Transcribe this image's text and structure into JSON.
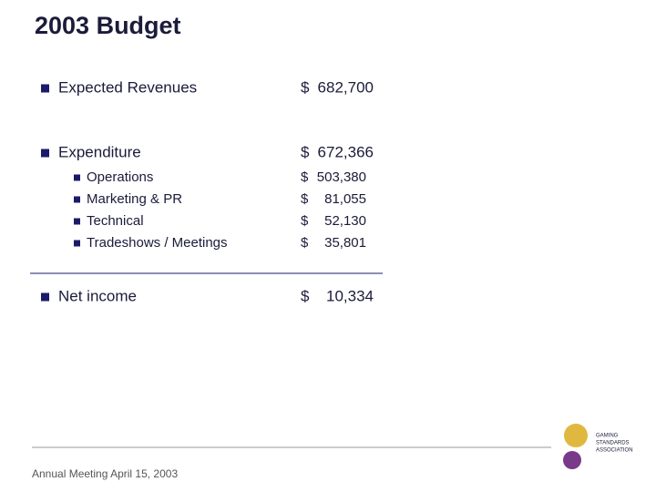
{
  "header": {
    "title": "2003 Budget"
  },
  "items": [
    {
      "label": "Expected Revenues",
      "currency": "$",
      "amount": "682,700"
    },
    {
      "label": "Expenditure",
      "currency": "$",
      "amount": "672,366",
      "subitems": [
        {
          "label": "Operations",
          "currency": "$",
          "amount": "503,380"
        },
        {
          "label": "Marketing & PR",
          "currency": "$",
          "amount": "81,055"
        },
        {
          "label": "Technical",
          "currency": "$",
          "amount": "52,130"
        },
        {
          "label": "Tradeshows / Meetings",
          "currency": "$",
          "amount": "35,801"
        }
      ]
    },
    {
      "label": "Net income",
      "currency": "$",
      "amount": "10,334"
    }
  ],
  "footer": {
    "text": "Annual Meeting April 15, 2003"
  },
  "logo": {
    "lines": [
      "GAMING",
      "STANDARDS",
      "ASSOCIATION"
    ]
  }
}
